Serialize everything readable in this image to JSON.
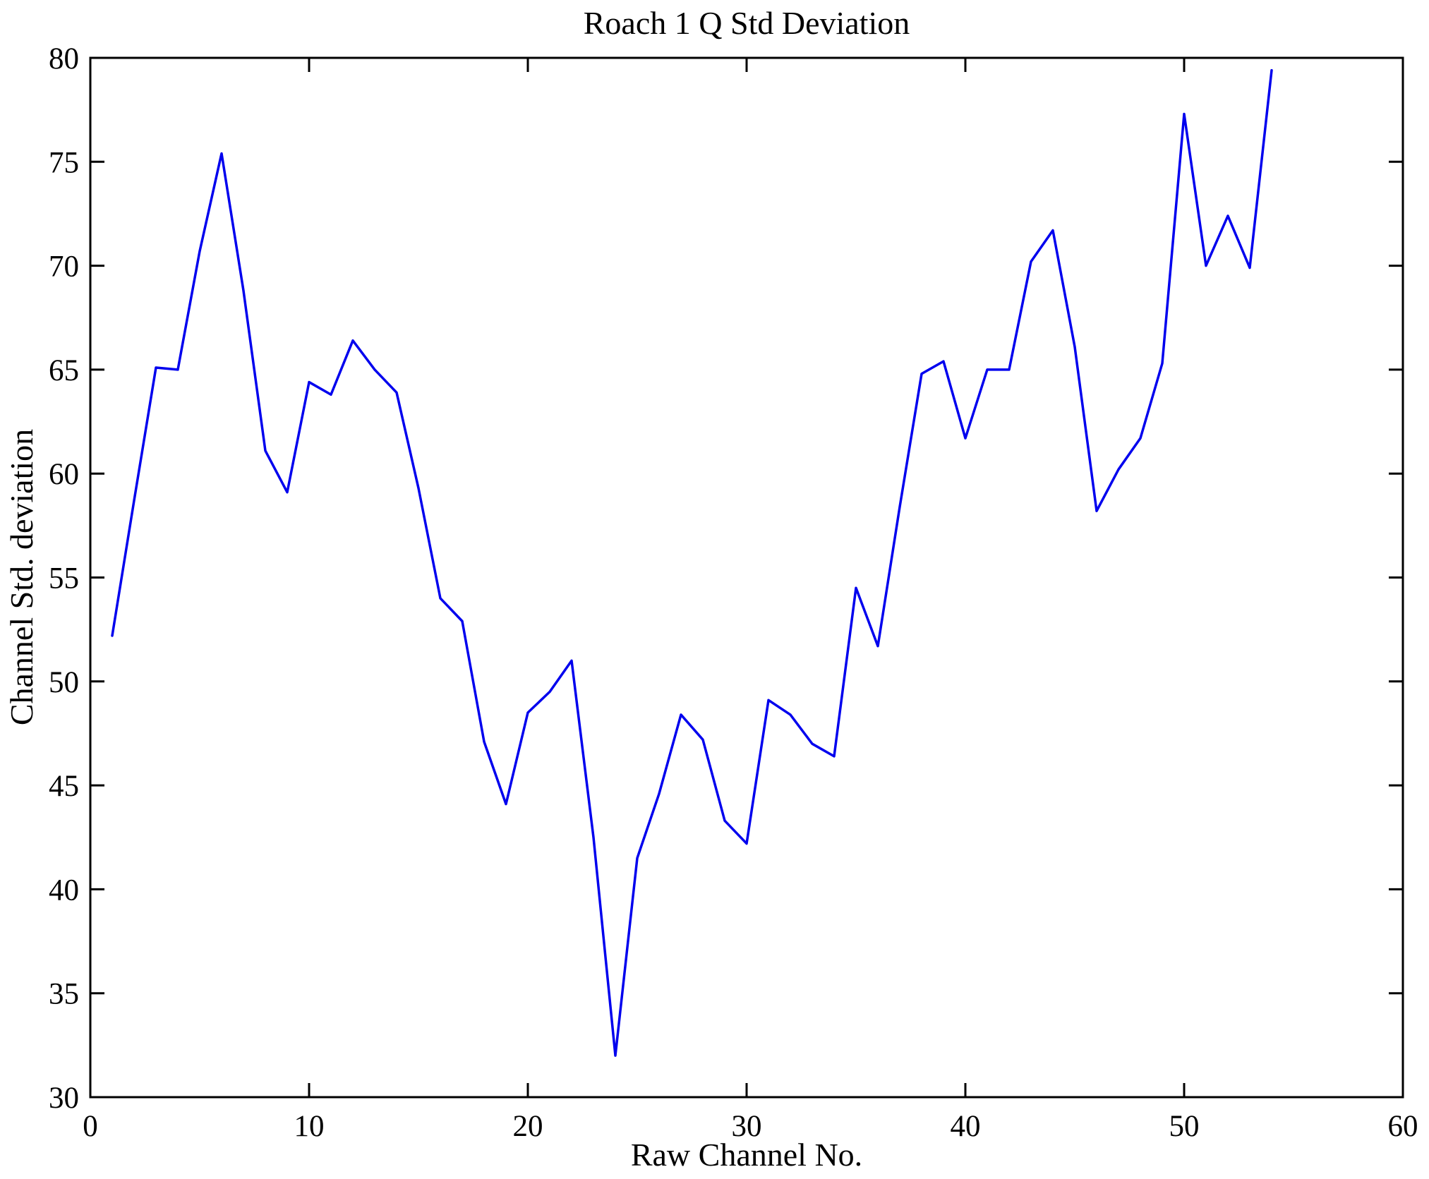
{
  "figure": {
    "title": "Roach 1 Q Std Deviation",
    "xlabel": "Raw Channel No.",
    "ylabel": "Channel Std. deviation"
  },
  "chart_data": {
    "type": "line",
    "title": "Roach 1 Q Std Deviation",
    "xlabel": "Raw Channel No.",
    "ylabel": "Channel Std. deviation",
    "xlim": [
      0,
      60
    ],
    "ylim": [
      30,
      80
    ],
    "xticks": [
      0,
      10,
      20,
      30,
      40,
      50,
      60
    ],
    "yticks": [
      30,
      35,
      40,
      45,
      50,
      55,
      60,
      65,
      70,
      75,
      80
    ],
    "grid": false,
    "legend": null,
    "line_color": "#0000EE",
    "axis_color": "#000000",
    "background": "#FFFFFF",
    "series": [
      {
        "name": "Channel Std. deviation",
        "x": [
          1,
          2,
          3,
          4,
          5,
          6,
          7,
          8,
          9,
          10,
          11,
          12,
          13,
          14,
          15,
          16,
          17,
          18,
          19,
          20,
          21,
          22,
          23,
          24,
          25,
          26,
          27,
          28,
          29,
          30,
          31,
          32,
          33,
          34,
          35,
          36,
          37,
          38,
          39,
          40,
          41,
          42,
          43,
          44,
          45,
          46,
          47,
          48,
          49,
          50,
          51,
          52,
          53,
          54
        ],
        "values": [
          52.2,
          58.7,
          65.1,
          65.0,
          70.7,
          75.4,
          68.8,
          61.1,
          59.1,
          64.4,
          63.8,
          66.4,
          65.0,
          63.9,
          59.3,
          54.0,
          52.9,
          47.1,
          44.1,
          48.5,
          49.5,
          51.0,
          42.5,
          32.0,
          41.5,
          44.6,
          48.4,
          47.2,
          43.3,
          42.2,
          49.1,
          48.4,
          47.0,
          46.4,
          54.5,
          51.7,
          58.4,
          64.8,
          65.4,
          61.7,
          65.0,
          65.0,
          70.2,
          71.7,
          66.1,
          58.2,
          60.2,
          61.7,
          65.3,
          77.3,
          70.0,
          72.4,
          69.9,
          79.4
        ]
      }
    ]
  }
}
